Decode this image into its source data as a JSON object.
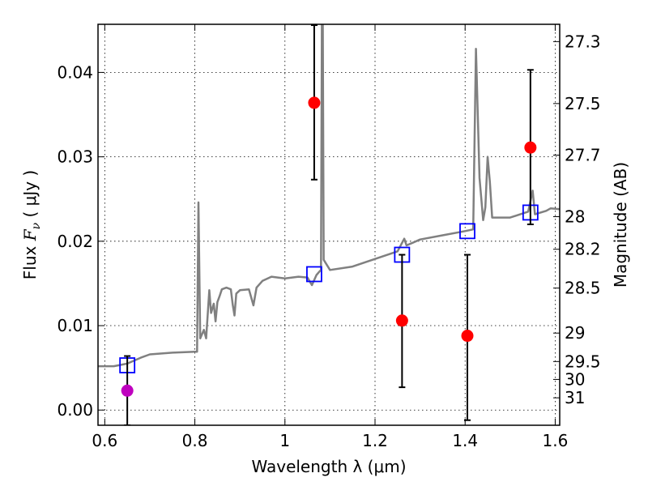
{
  "chart_data": {
    "type": "scatter",
    "xlabel": "Wavelength  λ (μm)",
    "ylabel_prefix": "Flux  ",
    "ylabel_var": "F",
    "ylabel_sub": "ν",
    "ylabel_suffix": "  ( μJy )",
    "y2label": "Magnitude (AB)",
    "xlim": [
      0.585,
      1.61
    ],
    "ylim": [
      -0.0018,
      0.0457
    ],
    "x_ticks": [
      {
        "value": 0.6,
        "label": "0.6"
      },
      {
        "value": 0.8,
        "label": "0.8"
      },
      {
        "value": 1.0,
        "label": "1"
      },
      {
        "value": 1.2,
        "label": "1.2"
      },
      {
        "value": 1.4,
        "label": "1.4"
      },
      {
        "value": 1.6,
        "label": "1.6"
      }
    ],
    "y_ticks": [
      {
        "value": 0.0,
        "label": "0.00"
      },
      {
        "value": 0.01,
        "label": "0.01"
      },
      {
        "value": 0.02,
        "label": "0.02"
      },
      {
        "value": 0.03,
        "label": "0.03"
      },
      {
        "value": 0.04,
        "label": "0.04"
      }
    ],
    "y2_ticks": [
      {
        "mag": "27.3",
        "flux": 0.04365
      },
      {
        "mag": "27.5",
        "flux": 0.03631
      },
      {
        "mag": "27.7",
        "flux": 0.0302
      },
      {
        "mag": "28",
        "flux": 0.02291
      },
      {
        "mag": "28.2",
        "flux": 0.01905
      },
      {
        "mag": "28.5",
        "flux": 0.01445
      },
      {
        "mag": "29",
        "flux": 0.00912
      },
      {
        "mag": "29.5",
        "flux": 0.00575
      },
      {
        "mag": "30",
        "flux": 0.00363
      },
      {
        "mag": "31",
        "flux": 0.00145
      }
    ],
    "grid": true,
    "series": [
      {
        "kind": "line",
        "color": "#808080",
        "points": [
          [
            0.585,
            0.0052
          ],
          [
            0.62,
            0.0052
          ],
          [
            0.65,
            0.0055
          ],
          [
            0.68,
            0.0062
          ],
          [
            0.7,
            0.0066
          ],
          [
            0.75,
            0.0068
          ],
          [
            0.8,
            0.0069
          ],
          [
            0.805,
            0.0069
          ],
          [
            0.808,
            0.0246
          ],
          [
            0.812,
            0.0085
          ],
          [
            0.82,
            0.0095
          ],
          [
            0.825,
            0.0085
          ],
          [
            0.832,
            0.0142
          ],
          [
            0.836,
            0.0115
          ],
          [
            0.842,
            0.0126
          ],
          [
            0.846,
            0.0105
          ],
          [
            0.85,
            0.0128
          ],
          [
            0.855,
            0.0135
          ],
          [
            0.86,
            0.0143
          ],
          [
            0.87,
            0.0145
          ],
          [
            0.88,
            0.0143
          ],
          [
            0.884,
            0.0125
          ],
          [
            0.888,
            0.0112
          ],
          [
            0.892,
            0.0138
          ],
          [
            0.9,
            0.0142
          ],
          [
            0.92,
            0.0143
          ],
          [
            0.93,
            0.0124
          ],
          [
            0.937,
            0.0145
          ],
          [
            0.95,
            0.0153
          ],
          [
            0.97,
            0.0158
          ],
          [
            1.0,
            0.0156
          ],
          [
            1.03,
            0.0158
          ],
          [
            1.05,
            0.0157
          ],
          [
            1.06,
            0.0148
          ],
          [
            1.07,
            0.016
          ],
          [
            1.078,
            0.0165
          ],
          [
            1.08,
            0.0165
          ],
          [
            1.082,
            0.046
          ],
          [
            1.084,
            0.046
          ],
          [
            1.086,
            0.0178
          ],
          [
            1.1,
            0.0166
          ],
          [
            1.15,
            0.017
          ],
          [
            1.2,
            0.0179
          ],
          [
            1.25,
            0.0188
          ],
          [
            1.265,
            0.0203
          ],
          [
            1.27,
            0.0195
          ],
          [
            1.3,
            0.0202
          ],
          [
            1.35,
            0.0207
          ],
          [
            1.4,
            0.0212
          ],
          [
            1.418,
            0.0214
          ],
          [
            1.424,
            0.0428
          ],
          [
            1.432,
            0.0275
          ],
          [
            1.44,
            0.0225
          ],
          [
            1.445,
            0.024
          ],
          [
            1.45,
            0.03
          ],
          [
            1.455,
            0.027
          ],
          [
            1.46,
            0.0228
          ],
          [
            1.5,
            0.0228
          ],
          [
            1.54,
            0.0235
          ],
          [
            1.55,
            0.026
          ],
          [
            1.555,
            0.0232
          ],
          [
            1.58,
            0.0236
          ],
          [
            1.59,
            0.0239
          ],
          [
            1.61,
            0.0238
          ]
        ]
      },
      {
        "kind": "squares",
        "color": "#0000ff",
        "points": [
          [
            0.65,
            0.0053
          ],
          [
            1.065,
            0.0161
          ],
          [
            1.26,
            0.0184
          ],
          [
            1.405,
            0.0212
          ],
          [
            1.545,
            0.0234
          ]
        ]
      },
      {
        "kind": "errorbars",
        "color": "#000000",
        "points": [
          {
            "x": 1.065,
            "y": 0.0364,
            "lo": 0.0273,
            "hi": 0.0456
          },
          {
            "x": 1.26,
            "y": 0.0106,
            "lo": 0.0027,
            "hi": 0.0184
          },
          {
            "x": 1.405,
            "y": 0.0088,
            "lo": -0.0012,
            "hi": 0.0184
          },
          {
            "x": 1.545,
            "y": 0.0311,
            "lo": 0.022,
            "hi": 0.0403
          },
          {
            "x": 0.65,
            "y": 0.0023,
            "lo": -0.0018,
            "hi": 0.0064
          }
        ]
      },
      {
        "kind": "circles",
        "color": "#ff0000",
        "points": [
          [
            1.065,
            0.0364
          ],
          [
            1.26,
            0.0106
          ],
          [
            1.405,
            0.0088
          ],
          [
            1.545,
            0.0311
          ]
        ]
      },
      {
        "kind": "circles",
        "color": "#bf00bf",
        "points": [
          [
            0.65,
            0.0023
          ]
        ]
      }
    ]
  }
}
